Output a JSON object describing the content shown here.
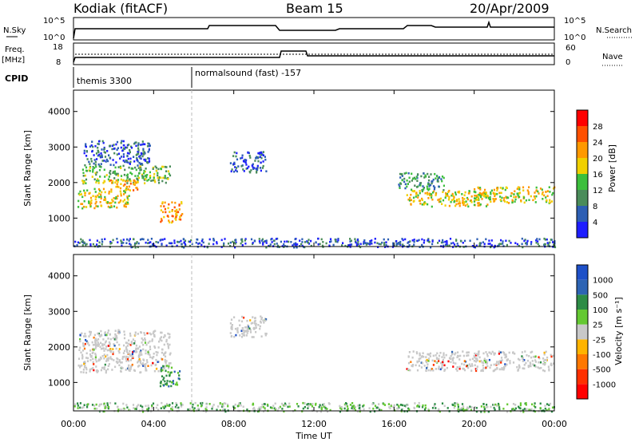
{
  "header": {
    "title": "Kodiak (fitACF)",
    "beam": "Beam 15",
    "date": "20/Apr/2009"
  },
  "top_panel": {
    "left_label": "N.Sky",
    "left_ticks": [
      "10^5",
      "10^0"
    ],
    "right_ticks": [
      "10^5",
      "10^0"
    ],
    "right_label": "N.Search"
  },
  "freq_panel": {
    "left_label_1": "Freq.",
    "left_label_2": "[MHz]",
    "left_ticks": [
      "18",
      "8"
    ],
    "right_ticks": [
      "60",
      "0"
    ],
    "right_label": "Nave"
  },
  "cpid": {
    "label": "CPID",
    "segments": [
      "themis 3300",
      "normalsound (fast) -157"
    ]
  },
  "chart_data": [
    {
      "type": "heatmap",
      "quantity": "Power",
      "xlabel": "Time UT",
      "ylabel": "Slant Range [km]",
      "x_ticks": [
        "00:00",
        "04:00",
        "08:00",
        "12:00",
        "16:00",
        "20:00",
        "00:00"
      ],
      "y_ticks": [
        "1000",
        "2000",
        "3000",
        "4000"
      ],
      "ylim": [
        200,
        4600
      ],
      "colorbar": {
        "label": "Power [dB]",
        "ticks": [
          "4",
          "8",
          "12",
          "16",
          "20",
          "24",
          "28"
        ],
        "colors": [
          "#1e1eff",
          "#2d5fb4",
          "#4a8c5a",
          "#3cbf3c",
          "#f0d000",
          "#ff9900",
          "#ff5000",
          "#ff0000"
        ]
      },
      "echo_regions": [
        {
          "t0": 0.2,
          "t1": 2.8,
          "r0": 1300,
          "r1": 1850,
          "level": 4
        },
        {
          "t0": 0.4,
          "t1": 4.8,
          "r0": 2000,
          "r1": 2500,
          "level": 3
        },
        {
          "t0": 1.8,
          "t1": 3.2,
          "r0": 1800,
          "r1": 2100,
          "level": 5
        },
        {
          "t0": 4.3,
          "t1": 5.4,
          "r0": 900,
          "r1": 1500,
          "level": 5
        },
        {
          "t0": 0.5,
          "t1": 3.8,
          "r0": 2500,
          "r1": 3200,
          "level": 1
        },
        {
          "t0": 7.8,
          "t1": 9.6,
          "r0": 2300,
          "r1": 2900,
          "level": 1
        },
        {
          "t0": 16.6,
          "t1": 20.8,
          "r0": 1350,
          "r1": 1800,
          "level": 4
        },
        {
          "t0": 19.8,
          "t1": 24.0,
          "r0": 1450,
          "r1": 1900,
          "level": 4
        },
        {
          "t0": 16.2,
          "t1": 18.5,
          "r0": 1800,
          "r1": 2300,
          "level": 2
        },
        {
          "t0": 0.0,
          "t1": 24.0,
          "r0": 200,
          "r1": 450,
          "level": 0
        }
      ]
    },
    {
      "type": "heatmap",
      "quantity": "Velocity",
      "xlabel": "Time UT",
      "ylabel": "Slant Range [km]",
      "x_ticks": [
        "00:00",
        "04:00",
        "08:00",
        "12:00",
        "16:00",
        "20:00",
        "00:00"
      ],
      "y_ticks": [
        "1000",
        "2000",
        "3000",
        "4000"
      ],
      "ylim": [
        200,
        4600
      ],
      "colorbar": {
        "label": "Velocity [m s⁻¹]",
        "ticks": [
          "1000",
          "500",
          "100",
          "25",
          "-25",
          "-100",
          "-500",
          "-1000"
        ],
        "colors": [
          "#1e50c8",
          "#2d64b4",
          "#2d8c46",
          "#64c832",
          "#c8c8c8",
          "#ffb400",
          "#ff7800",
          "#ff3000",
          "#ff0000"
        ]
      },
      "echo_regions": [
        {
          "t0": 0.2,
          "t1": 4.8,
          "r0": 1300,
          "r1": 2500,
          "level": 4
        },
        {
          "t0": 4.3,
          "t1": 5.3,
          "r0": 900,
          "r1": 1500,
          "level": 2
        },
        {
          "t0": 7.8,
          "t1": 9.6,
          "r0": 2300,
          "r1": 2900,
          "level": 4
        },
        {
          "t0": 16.6,
          "t1": 24.0,
          "r0": 1350,
          "r1": 1900,
          "level": 4
        },
        {
          "t0": 0.0,
          "t1": 24.0,
          "r0": 200,
          "r1": 450,
          "level": 3
        }
      ]
    }
  ],
  "x_axis_title": "Time UT"
}
